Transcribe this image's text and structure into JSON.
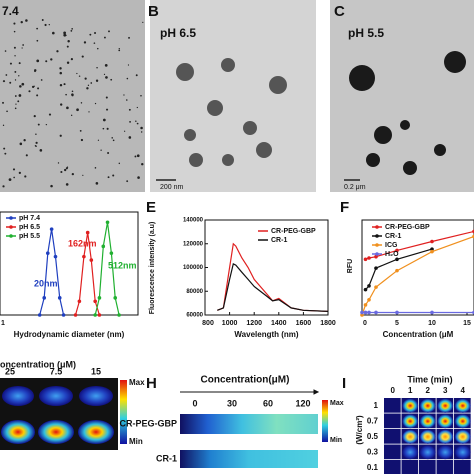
{
  "panels": {
    "a": {
      "label": "7.4"
    },
    "b": {
      "letter": "B",
      "label": "pH 6.5",
      "scale_bar": "200 nm"
    },
    "c": {
      "letter": "C",
      "label": "pH 5.5",
      "scale_bar": "0.2 μm"
    },
    "g": {
      "title": "oncentration (μM)",
      "columns": [
        "25",
        "7.5",
        "15"
      ],
      "max": "Max",
      "min": "Min"
    },
    "h": {
      "letter": "H",
      "title": "Concentration(μM)",
      "columns": [
        "0",
        "30",
        "60",
        "120"
      ],
      "rows": [
        "CR-PEG-GBP",
        "CR-1"
      ],
      "max": "Max",
      "min": "Min"
    },
    "i": {
      "letter": "I",
      "title": "Time (min)",
      "columns": [
        "0",
        "1",
        "2",
        "3",
        "4"
      ],
      "rows": [
        "1",
        "0.7",
        "0.5",
        "0.3",
        "0.1"
      ],
      "ylabel": "(W/cm²)"
    }
  },
  "chart_data": [
    {
      "type": "line",
      "xlabel": "Hydrodynamic diameter (nm)",
      "xscale": "log",
      "xlim": [
        1,
        3000
      ],
      "xticks": [
        1
      ],
      "ylim": [
        0,
        30
      ],
      "markers": true,
      "legend": "upper left",
      "annotations": [
        "20nm",
        "162nm",
        "512nm"
      ],
      "series": [
        {
          "name": "pH 7.4",
          "color": "#1f3fbf",
          "x": [
            10,
            13,
            16,
            20,
            25,
            32,
            40
          ],
          "values": [
            0,
            5,
            18,
            25,
            17,
            5,
            0
          ]
        },
        {
          "name": "pH 6.5",
          "color": "#e02020",
          "x": [
            80,
            100,
            130,
            162,
            200,
            250,
            320
          ],
          "values": [
            0,
            4,
            17,
            24,
            16,
            4,
            0
          ]
        },
        {
          "name": "pH 5.5",
          "color": "#20b030",
          "x": [
            250,
            320,
            400,
            512,
            640,
            800,
            1000
          ],
          "values": [
            0,
            5,
            20,
            27,
            18,
            5,
            0
          ]
        }
      ]
    },
    {
      "type": "line",
      "letter": "E",
      "xlabel": "Wavelength (nm)",
      "ylabel": "Fluorescence intensity (a.u)",
      "xlim": [
        800,
        1800
      ],
      "xticks": [
        800,
        1000,
        1200,
        1400,
        1600,
        1800
      ],
      "ylim": [
        60000,
        140000
      ],
      "yticks": [
        60000,
        80000,
        100000,
        120000,
        140000
      ],
      "markers": false,
      "legend": "upper right",
      "x": [
        900,
        950,
        1000,
        1030,
        1050,
        1100,
        1150,
        1200,
        1300,
        1350,
        1400,
        1500,
        1600,
        1800
      ],
      "series": [
        {
          "name": "CR-PEG-GBP",
          "color": "#e02020",
          "values": [
            64000,
            66000,
            100000,
            120000,
            118000,
            108000,
            100000,
            90000,
            78000,
            72000,
            74000,
            66000,
            64000,
            63000
          ]
        },
        {
          "name": "CR-1",
          "color": "#111111",
          "values": [
            64000,
            66000,
            90000,
            103000,
            102000,
            96000,
            90000,
            84000,
            76000,
            72000,
            73000,
            66000,
            64000,
            63000
          ]
        }
      ]
    },
    {
      "type": "line",
      "letter": "F",
      "xlabel": "Concentration (μM",
      "ylabel": "RFU",
      "xlim": [
        0,
        16
      ],
      "xticks": [
        0,
        5,
        10,
        15
      ],
      "ylim": [
        0,
        75
      ],
      "markers": true,
      "legend": "upper left",
      "x": [
        0,
        0.5,
        1,
        2,
        5,
        10,
        16
      ],
      "series": [
        {
          "name": "CR-PEG-GBP",
          "color": "#e02020",
          "values": [
            null,
            44,
            45,
            46,
            51,
            58,
            66
          ]
        },
        {
          "name": "CR-1",
          "color": "#111111",
          "values": [
            null,
            20,
            23,
            37,
            44,
            52,
            null
          ]
        },
        {
          "name": "ICG",
          "color": "#f0901e",
          "values": [
            0,
            8,
            12,
            22,
            35,
            50,
            62
          ]
        },
        {
          "name": "H₂O",
          "color": "#6a6ae0",
          "values": [
            2,
            2,
            2,
            2,
            2,
            2,
            2
          ]
        }
      ]
    }
  ]
}
